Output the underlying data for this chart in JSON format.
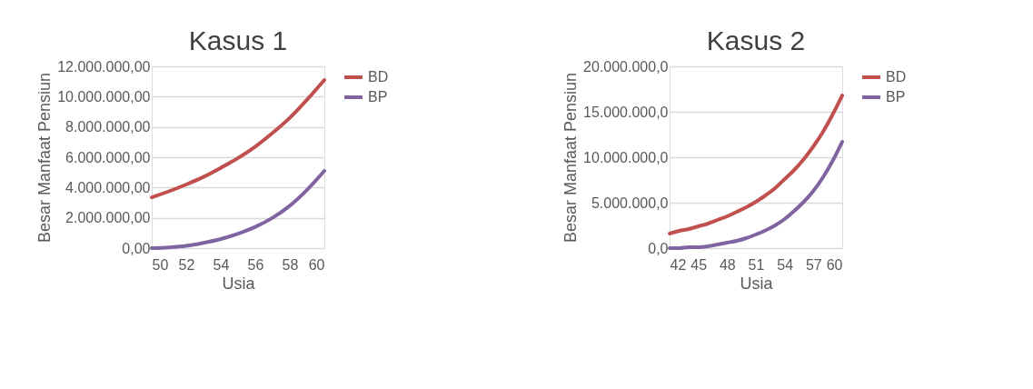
{
  "chart_data": [
    {
      "type": "line",
      "title": "Kasus 1",
      "xlabel": "Usia",
      "ylabel": "Besar Manfaat Pensiun",
      "x": [
        50,
        51,
        52,
        53,
        54,
        55,
        56,
        57,
        58,
        59,
        60
      ],
      "series": [
        {
          "name": "BD",
          "color": "#c0504d",
          "values": [
            3350000,
            3750000,
            4200000,
            4700000,
            5300000,
            5950000,
            6700000,
            7600000,
            8600000,
            9800000,
            11100000
          ]
        },
        {
          "name": "BP",
          "color": "#8064a2",
          "values": [
            0,
            50000,
            150000,
            350000,
            600000,
            950000,
            1400000,
            2000000,
            2800000,
            3850000,
            5100000
          ]
        }
      ],
      "xlim": [
        50,
        60
      ],
      "xticks": [
        50,
        52,
        54,
        56,
        58,
        60
      ],
      "ylim": [
        0,
        12000000
      ],
      "yticks": [
        {
          "value": 0,
          "label": "0,00"
        },
        {
          "value": 2000000,
          "label": "2.000.000,00"
        },
        {
          "value": 4000000,
          "label": "4.000.000,00"
        },
        {
          "value": 6000000,
          "label": "6.000.000,00"
        },
        {
          "value": 8000000,
          "label": "8.000.000,00"
        },
        {
          "value": 10000000,
          "label": "10.000.000,00"
        },
        {
          "value": 12000000,
          "label": "12.000.000,00"
        }
      ],
      "grid": "y",
      "legend": "right",
      "line_style": "solid",
      "marker": "none"
    },
    {
      "type": "line",
      "title": "Kasus 2",
      "xlabel": "Usia",
      "ylabel": "Besar Manfaat Pensiun",
      "x": [
        42,
        43,
        44,
        45,
        46,
        47,
        48,
        49,
        50,
        51,
        52,
        53,
        54,
        55,
        56,
        57,
        58,
        59,
        60
      ],
      "series": [
        {
          "name": "BD",
          "color": "#c0504d",
          "values": [
            1600000,
            1900000,
            2100000,
            2400000,
            2700000,
            3100000,
            3500000,
            4000000,
            4500000,
            5100000,
            5800000,
            6600000,
            7600000,
            8600000,
            9800000,
            11200000,
            12800000,
            14700000,
            16800000
          ]
        },
        {
          "name": "BP",
          "color": "#8064a2",
          "values": [
            0,
            0,
            100000,
            100000,
            200000,
            400000,
            600000,
            800000,
            1100000,
            1500000,
            1950000,
            2500000,
            3200000,
            4100000,
            5100000,
            6300000,
            7800000,
            9600000,
            11700000
          ]
        }
      ],
      "xlim": [
        42,
        60
      ],
      "xticks": [
        42,
        45,
        48,
        51,
        54,
        57,
        60
      ],
      "ylim": [
        0,
        20000000
      ],
      "yticks": [
        {
          "value": 0,
          "label": "0,0"
        },
        {
          "value": 5000000,
          "label": "5.000.000,0"
        },
        {
          "value": 10000000,
          "label": "10.000.000,0"
        },
        {
          "value": 15000000,
          "label": "15.000.000,0"
        },
        {
          "value": 20000000,
          "label": "20.000.000,0"
        }
      ],
      "grid": "y",
      "legend": "right",
      "line_style": "solid",
      "marker": "none"
    }
  ]
}
